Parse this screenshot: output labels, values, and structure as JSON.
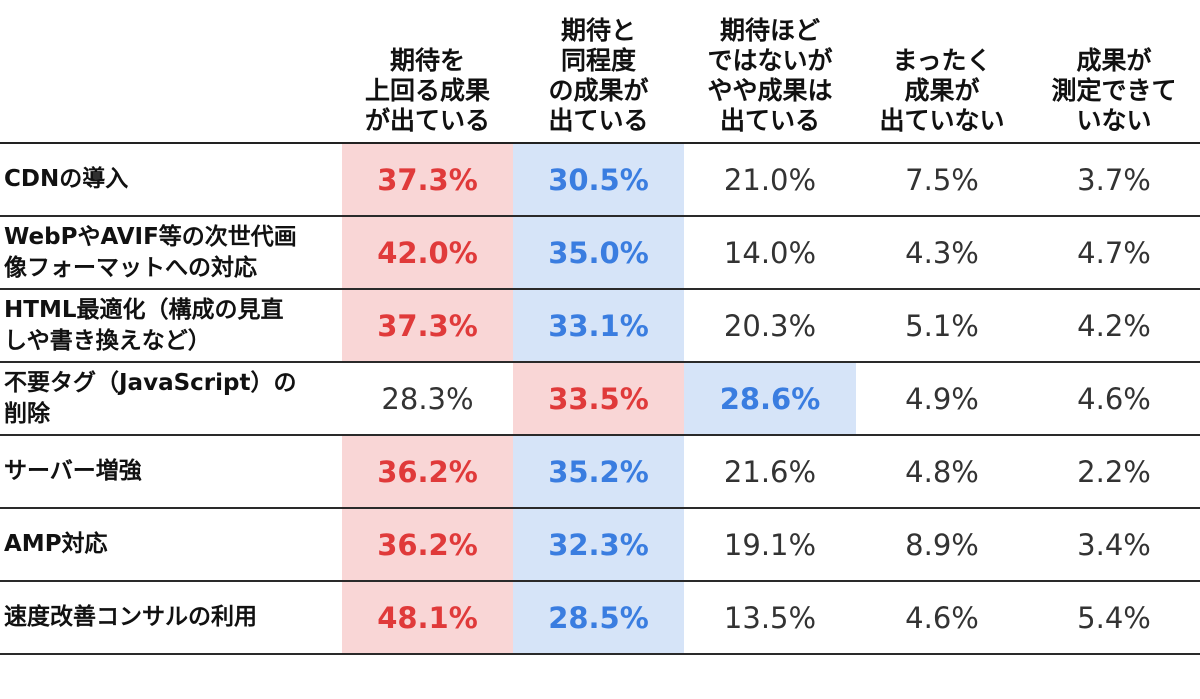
{
  "chart_data": {
    "type": "table",
    "columns": [
      "期待を\n上回る成果\nが出ている",
      "期待と\n同程度\nの成果が\n出ている",
      "期待ほど\nではないが\nやや成果は\n出ている",
      "まったく\n成果が\n出ていない",
      "成果が\n測定できて\nいない"
    ],
    "rows": [
      {
        "label": "CDNの導入",
        "values": [
          "37.3%",
          "30.5%",
          "21.0%",
          "7.5%",
          "3.7%"
        ],
        "highlight": [
          "red",
          "blue",
          "",
          "",
          ""
        ]
      },
      {
        "label": "WebPやAVIF等の次世代画\n像フォーマットへの対応",
        "values": [
          "42.0%",
          "35.0%",
          "14.0%",
          "4.3%",
          "4.7%"
        ],
        "highlight": [
          "red",
          "blue",
          "",
          "",
          ""
        ]
      },
      {
        "label": "HTML最適化（構成の見直\nしや書き換えなど）",
        "values": [
          "37.3%",
          "33.1%",
          "20.3%",
          "5.1%",
          "4.2%"
        ],
        "highlight": [
          "red",
          "blue",
          "",
          "",
          ""
        ]
      },
      {
        "label": "不要タグ（JavaScript）の\n削除",
        "values": [
          "28.3%",
          "33.5%",
          "28.6%",
          "4.9%",
          "4.6%"
        ],
        "highlight": [
          "",
          "red",
          "blue",
          "",
          ""
        ]
      },
      {
        "label": "サーバー増強",
        "values": [
          "36.2%",
          "35.2%",
          "21.6%",
          "4.8%",
          "2.2%"
        ],
        "highlight": [
          "red",
          "blue",
          "",
          "",
          ""
        ]
      },
      {
        "label": "AMP対応",
        "values": [
          "36.2%",
          "32.3%",
          "19.1%",
          "8.9%",
          "3.4%"
        ],
        "highlight": [
          "red",
          "blue",
          "",
          "",
          ""
        ]
      },
      {
        "label": "速度改善コンサルの利用",
        "values": [
          "48.1%",
          "28.5%",
          "13.5%",
          "4.6%",
          "5.4%"
        ],
        "highlight": [
          "red",
          "blue",
          "",
          "",
          ""
        ]
      }
    ],
    "colors": {
      "highlight_red_bg": "#f9d6d6",
      "highlight_red_text": "#e03a3a",
      "highlight_blue_bg": "#d6e4f8",
      "highlight_blue_text": "#3a7de0"
    }
  }
}
